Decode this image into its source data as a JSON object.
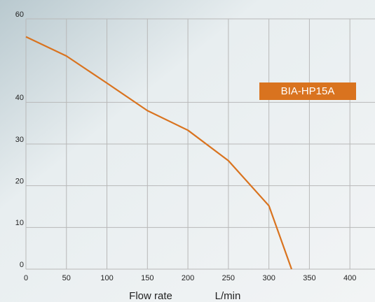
{
  "chart_data": {
    "type": "line",
    "xlabel": "Flow rate",
    "xunit": "L/min",
    "x": [
      0,
      50,
      100,
      150,
      200,
      250,
      300,
      328
    ],
    "series": [
      {
        "name": "BIA-HP15A",
        "color": "#d9731f",
        "values": [
          55.7,
          51.1,
          44.6,
          38.0,
          33.3,
          26.0,
          15.2,
          0
        ]
      }
    ],
    "xlim": [
      0,
      431
    ],
    "xticks": [
      0,
      50,
      100,
      150,
      200,
      250,
      300,
      350,
      400
    ],
    "ylim": [
      0,
      60
    ],
    "yticks": [
      0,
      10,
      20,
      30,
      40,
      60
    ],
    "grid": true
  }
}
